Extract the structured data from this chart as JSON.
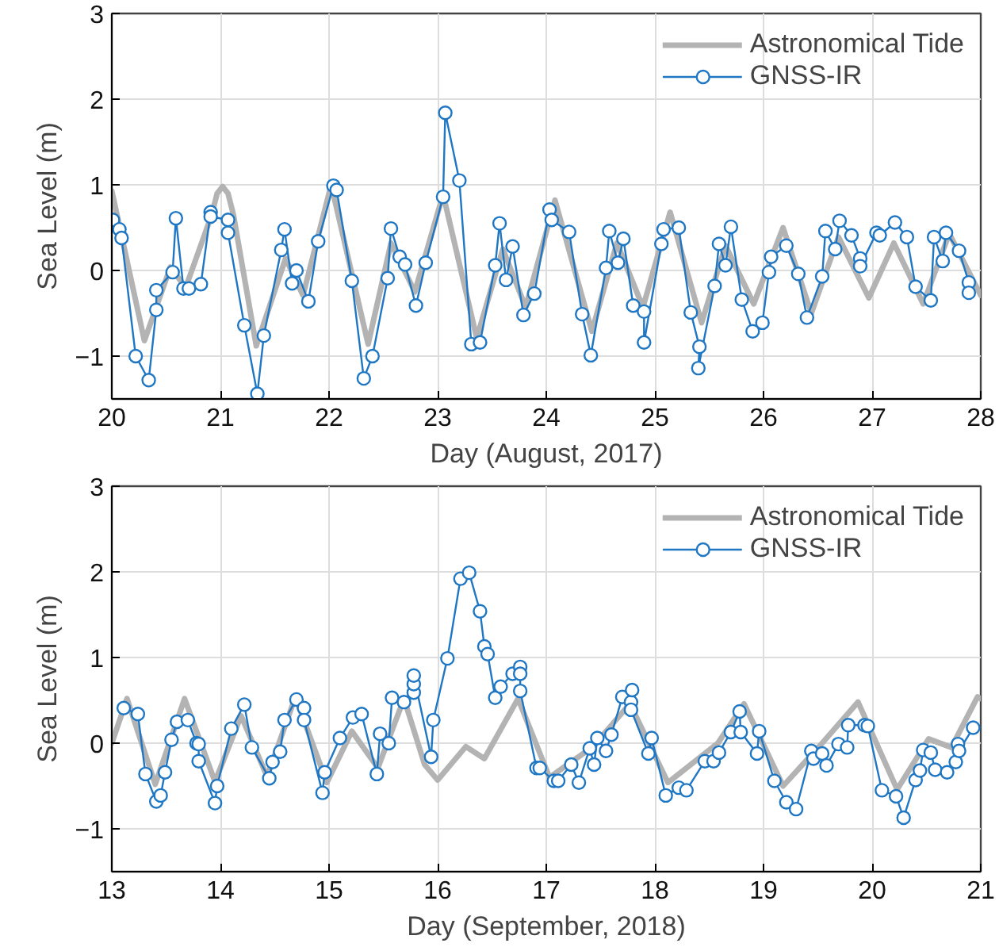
{
  "chart_data": [
    {
      "type": "line",
      "xlabel": "Day (August, 2017)",
      "ylabel": "Sea Level (m)",
      "xlim": [
        20,
        28
      ],
      "xticks": [
        20,
        21,
        22,
        23,
        24,
        25,
        26,
        27,
        28
      ],
      "ylim": [
        -1.5,
        3
      ],
      "yticks": [
        -1,
        0,
        1,
        2,
        3
      ],
      "grid": true,
      "legend": "top right",
      "line_style": "solid",
      "series": [
        {
          "name": "Astronomical Tide",
          "color": "#b3b3b3",
          "marker": "none",
          "x": [
            20.0,
            20.3,
            20.54,
            20.68,
            20.92,
            20.97,
            21.02,
            21.07,
            21.12,
            21.33,
            21.6,
            21.76,
            22.02,
            22.36,
            22.57,
            22.79,
            23.05,
            23.36,
            23.6,
            23.81,
            24.08,
            24.42,
            24.65,
            24.89,
            25.14,
            25.43,
            25.65,
            25.91,
            26.18,
            26.44,
            26.69,
            26.97,
            27.2,
            27.47,
            27.71,
            28.0
          ],
          "values": [
            0.93,
            -0.82,
            0.04,
            -0.2,
            0.65,
            0.9,
            0.98,
            0.9,
            0.65,
            -0.88,
            0.14,
            -0.29,
            1.0,
            -0.86,
            0.32,
            -0.25,
            0.89,
            -0.79,
            0.25,
            -0.43,
            0.82,
            -0.71,
            0.32,
            -0.43,
            0.68,
            -0.61,
            0.29,
            -0.39,
            0.5,
            -0.5,
            0.39,
            -0.32,
            0.32,
            -0.39,
            0.43,
            -0.29
          ]
        },
        {
          "name": "GNSS-IR",
          "color": "#1f77c4",
          "marker": "circle",
          "x": [
            20.01,
            20.07,
            20.09,
            20.22,
            20.34,
            20.41,
            20.41,
            20.56,
            20.59,
            20.66,
            20.71,
            20.82,
            20.91,
            20.91,
            21.07,
            21.07,
            21.22,
            21.34,
            21.4,
            21.56,
            21.59,
            21.66,
            21.7,
            21.81,
            21.9,
            22.04,
            22.07,
            22.21,
            22.32,
            22.4,
            22.54,
            22.57,
            22.65,
            22.7,
            22.8,
            22.89,
            23.05,
            23.07,
            23.2,
            23.31,
            23.39,
            23.53,
            23.57,
            23.63,
            23.69,
            23.79,
            23.89,
            24.03,
            24.05,
            24.21,
            24.33,
            24.41,
            24.55,
            24.58,
            24.66,
            24.71,
            24.8,
            24.9,
            24.9,
            25.06,
            25.08,
            25.22,
            25.33,
            25.41,
            25.4,
            25.55,
            25.59,
            25.65,
            25.7,
            25.8,
            25.9,
            25.99,
            26.05,
            26.07,
            26.21,
            26.32,
            26.4,
            26.54,
            26.57,
            26.66,
            26.7,
            26.81,
            26.89,
            26.89,
            27.04,
            27.07,
            27.21,
            27.32,
            27.4,
            27.54,
            27.57,
            27.65,
            27.68,
            27.8,
            27.89,
            27.89
          ],
          "values": [
            0.59,
            0.48,
            0.38,
            -1.0,
            -1.28,
            -0.46,
            -0.23,
            -0.02,
            0.61,
            -0.21,
            -0.21,
            -0.16,
            0.68,
            0.63,
            0.59,
            0.44,
            -0.64,
            -1.44,
            -0.76,
            0.24,
            0.48,
            -0.15,
            0.0,
            -0.36,
            0.34,
            0.99,
            0.94,
            -0.12,
            -1.26,
            -1.0,
            -0.09,
            0.49,
            0.16,
            0.07,
            -0.41,
            0.09,
            0.86,
            1.84,
            1.05,
            -0.86,
            -0.84,
            0.06,
            0.55,
            -0.11,
            0.28,
            -0.52,
            -0.27,
            0.71,
            0.59,
            0.45,
            -0.51,
            -0.99,
            0.03,
            0.46,
            0.09,
            0.37,
            -0.41,
            -0.48,
            -0.84,
            0.31,
            0.48,
            0.5,
            -0.49,
            -0.89,
            -1.14,
            -0.18,
            0.31,
            0.06,
            0.51,
            -0.34,
            -0.71,
            -0.61,
            -0.02,
            0.16,
            0.29,
            -0.04,
            -0.55,
            -0.07,
            0.46,
            0.25,
            0.58,
            0.41,
            0.14,
            0.05,
            0.44,
            0.41,
            0.56,
            0.39,
            -0.19,
            -0.35,
            0.39,
            0.11,
            0.44,
            0.23,
            -0.14,
            -0.26
          ]
        }
      ]
    },
    {
      "type": "line",
      "xlabel": "Day (September, 2018)",
      "ylabel": "Sea Level (m)",
      "xlim": [
        13,
        21
      ],
      "xticks": [
        13,
        14,
        15,
        16,
        17,
        18,
        19,
        20,
        21
      ],
      "ylim": [
        -1.5,
        3
      ],
      "yticks": [
        -1,
        0,
        1,
        2,
        3
      ],
      "grid": true,
      "legend": "top right",
      "line_style": "solid",
      "series": [
        {
          "name": "Astronomical Tide",
          "color": "#b3b3b3",
          "marker": "none",
          "x": [
            13.0,
            13.14,
            13.4,
            13.67,
            13.95,
            14.19,
            14.43,
            14.69,
            14.98,
            15.21,
            15.45,
            15.69,
            15.88,
            16.0,
            16.12,
            16.26,
            16.43,
            16.74,
            17.03,
            17.43,
            17.77,
            18.12,
            18.58,
            18.82,
            19.18,
            19.54,
            19.87,
            20.23,
            20.52,
            20.73,
            20.97,
            21.0
          ],
          "values": [
            0.0,
            0.52,
            -0.48,
            0.52,
            -0.45,
            0.32,
            -0.39,
            0.54,
            -0.46,
            0.14,
            -0.29,
            0.52,
            -0.25,
            -0.43,
            -0.25,
            -0.04,
            -0.18,
            0.52,
            -0.4,
            -0.04,
            0.46,
            -0.46,
            0.0,
            0.46,
            -0.5,
            0.0,
            0.48,
            -0.54,
            0.05,
            -0.05,
            0.54,
            0.52
          ]
        },
        {
          "name": "GNSS-IR",
          "color": "#1f77c4",
          "marker": "circle",
          "x": [
            13.11,
            13.24,
            13.31,
            13.41,
            13.45,
            13.49,
            13.55,
            13.6,
            13.7,
            13.78,
            13.8,
            13.8,
            13.95,
            13.97,
            14.1,
            14.22,
            14.29,
            14.45,
            14.48,
            14.55,
            14.59,
            14.7,
            14.77,
            14.77,
            14.94,
            14.96,
            15.1,
            15.22,
            15.3,
            15.44,
            15.47,
            15.55,
            15.58,
            15.69,
            15.78,
            15.78,
            15.78,
            15.94,
            15.96,
            16.09,
            16.21,
            16.29,
            16.39,
            16.43,
            16.46,
            16.53,
            16.58,
            16.69,
            16.76,
            16.76,
            16.76,
            16.91,
            16.94,
            17.07,
            17.11,
            17.23,
            17.3,
            17.4,
            17.44,
            17.47,
            17.55,
            17.6,
            17.7,
            17.78,
            17.79,
            17.78,
            17.94,
            17.97,
            18.1,
            18.22,
            18.29,
            18.46,
            18.54,
            18.59,
            18.7,
            18.78,
            18.79,
            18.94,
            18.96,
            19.1,
            19.21,
            19.3,
            19.44,
            19.46,
            19.54,
            19.58,
            19.69,
            19.77,
            19.78,
            19.93,
            19.96,
            20.09,
            20.22,
            20.29,
            20.4,
            20.44,
            20.47,
            20.54,
            20.58,
            20.69,
            20.77,
            20.79,
            20.8,
            20.93
          ],
          "values": [
            0.41,
            0.34,
            -0.36,
            -0.68,
            -0.61,
            -0.34,
            0.04,
            0.25,
            0.27,
            0.0,
            -0.01,
            -0.21,
            -0.7,
            -0.5,
            0.17,
            0.45,
            -0.05,
            -0.41,
            -0.22,
            -0.1,
            0.27,
            0.51,
            0.41,
            0.27,
            -0.58,
            -0.34,
            0.06,
            0.3,
            0.34,
            -0.36,
            0.11,
            0.0,
            0.53,
            0.48,
            0.59,
            0.69,
            0.79,
            -0.16,
            0.27,
            0.99,
            1.92,
            1.99,
            1.54,
            1.13,
            1.04,
            0.53,
            0.66,
            0.81,
            0.89,
            0.81,
            0.61,
            -0.29,
            -0.29,
            -0.44,
            -0.44,
            -0.25,
            -0.46,
            -0.06,
            -0.25,
            0.06,
            -0.09,
            0.1,
            0.54,
            0.48,
            0.62,
            0.39,
            -0.12,
            0.06,
            -0.61,
            -0.52,
            -0.55,
            -0.21,
            -0.21,
            -0.11,
            0.13,
            0.37,
            0.13,
            -0.12,
            0.14,
            -0.44,
            -0.69,
            -0.77,
            -0.09,
            -0.18,
            -0.12,
            -0.26,
            -0.01,
            -0.05,
            0.21,
            0.21,
            0.2,
            -0.55,
            -0.62,
            -0.87,
            -0.43,
            -0.32,
            -0.08,
            -0.11,
            -0.31,
            -0.34,
            -0.22,
            -0.01,
            -0.09,
            0.18
          ]
        }
      ]
    }
  ]
}
